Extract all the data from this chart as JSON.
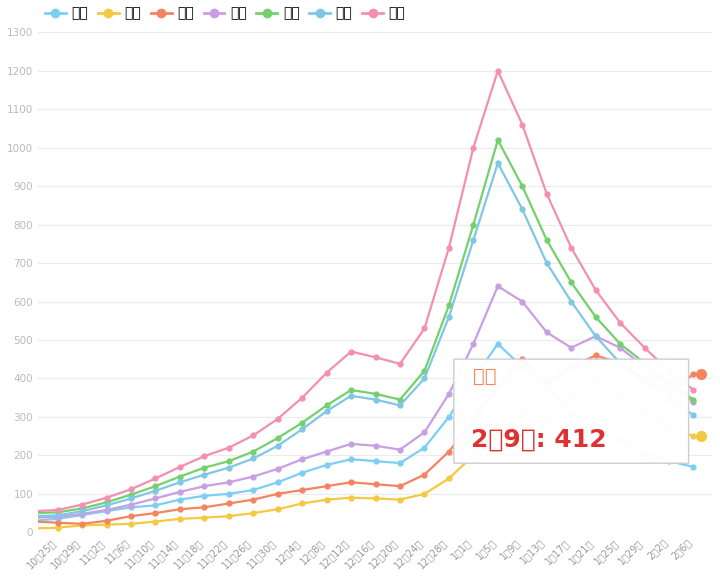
{
  "background_color": "#ffffff",
  "legend_labels": [
    "日曜",
    "月曜",
    "火曜",
    "水曜",
    "木曜",
    "金曜",
    "土曜"
  ],
  "legend_colors": [
    "#7ecef4",
    "#f5c842",
    "#f4845f",
    "#c99fe4",
    "#74d06c",
    "#7ec8e3",
    "#f48fb1"
  ],
  "series": {
    "日曜": [
      30,
      25,
      30,
      35,
      45,
      55,
      65,
      70,
      85,
      95,
      100,
      110,
      130,
      155,
      175,
      190,
      185,
      180,
      220,
      300,
      400,
      490,
      430,
      380,
      310,
      270,
      240,
      205,
      185,
      170
    ],
    "月曜": [
      15,
      12,
      10,
      12,
      18,
      20,
      22,
      28,
      35,
      38,
      42,
      50,
      60,
      75,
      85,
      90,
      88,
      85,
      100,
      140,
      200,
      260,
      310,
      290,
      360,
      390,
      360,
      310,
      275,
      250
    ],
    "火曜": [
      35,
      30,
      28,
      25,
      22,
      30,
      42,
      50,
      60,
      65,
      75,
      85,
      100,
      110,
      120,
      130,
      125,
      120,
      150,
      210,
      290,
      380,
      450,
      390,
      430,
      460,
      440,
      400,
      360,
      412
    ],
    "水曜": [
      50,
      42,
      38,
      40,
      48,
      58,
      72,
      88,
      105,
      120,
      130,
      145,
      165,
      190,
      210,
      230,
      225,
      215,
      260,
      360,
      490,
      640,
      600,
      520,
      480,
      510,
      480,
      430,
      380,
      340
    ],
    "木曜": [
      65,
      55,
      50,
      52,
      62,
      78,
      98,
      120,
      145,
      168,
      185,
      210,
      245,
      285,
      330,
      370,
      360,
      345,
      420,
      590,
      800,
      1020,
      900,
      760,
      650,
      560,
      490,
      440,
      390,
      345
    ],
    "金曜": [
      55,
      48,
      42,
      44,
      55,
      70,
      88,
      108,
      130,
      150,
      168,
      192,
      225,
      268,
      315,
      355,
      345,
      330,
      400,
      560,
      760,
      960,
      840,
      700,
      600,
      510,
      440,
      390,
      345,
      305
    ],
    "土曜": [
      75,
      62,
      55,
      58,
      72,
      90,
      112,
      140,
      170,
      198,
      220,
      252,
      295,
      350,
      415,
      470,
      455,
      438,
      530,
      740,
      1000,
      1200,
      1060,
      880,
      740,
      630,
      545,
      480,
      420,
      370
    ]
  },
  "x_labels": [
    "10月25日",
    "10月29日",
    "11月2日",
    "11月6日",
    "11月10日",
    "11月14日",
    "11月18日",
    "11月22日",
    "11月26日",
    "11月30日",
    "12月4日",
    "12月8日",
    "12月12日",
    "12月16日",
    "12月20日",
    "12月24日",
    "12月28日",
    "1月1日",
    "1月5日",
    "1月9日",
    "1月13日",
    "1月17日",
    "1月21日",
    "1月25日",
    "1月29日",
    "2月2日",
    "2月6日"
  ],
  "ylim": [
    0,
    1300
  ],
  "ytick_step": 100,
  "tooltip_day": "火曜",
  "tooltip_date": "2月9日",
  "tooltip_value": "412",
  "tooltip_fg_color": "#f4845f",
  "tooltip_value_color": "#e03030",
  "grid_color": "#ebebeb",
  "tick_color": "#aaaaaa"
}
